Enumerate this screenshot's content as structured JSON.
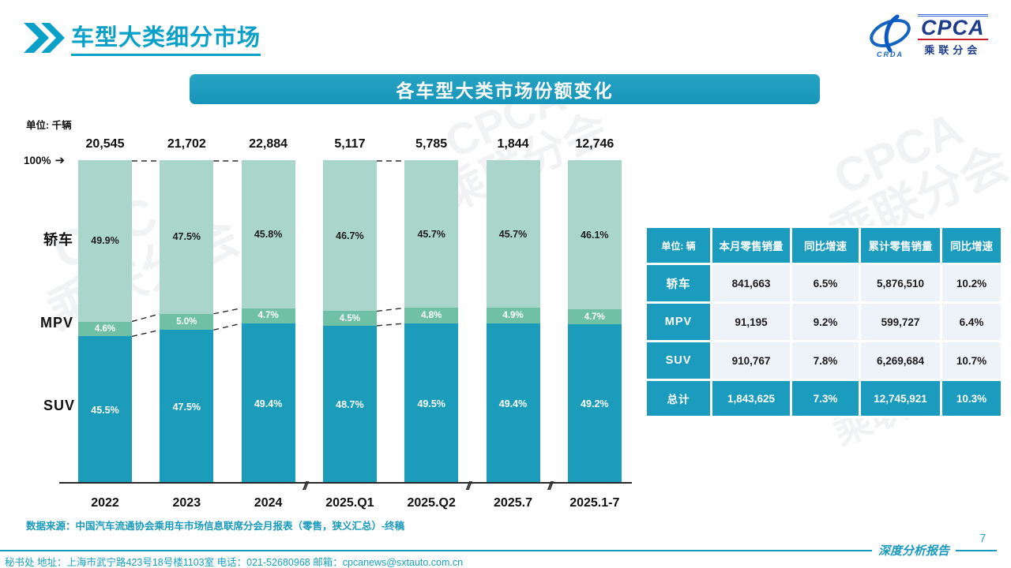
{
  "header": {
    "title": "车型大类细分市场"
  },
  "logo": {
    "name": "CPCA",
    "subtitle": "乘联分会",
    "swoosh_caption": "CRDA"
  },
  "banner": {
    "title": "各车型大类市场份额变化"
  },
  "chart_data": {
    "type": "bar",
    "stacked": true,
    "title": "各车型大类市场份额变化",
    "unit_label": "单位: 千辆",
    "y_top_label": "100%",
    "ylim": [
      0,
      100
    ],
    "categories": [
      "2022",
      "2023",
      "2024",
      "2025.Q1",
      "2025.Q2",
      "2025.7",
      "2025.1-7"
    ],
    "totals": [
      "20,545",
      "21,702",
      "22,884",
      "5,117",
      "5,785",
      "1,844",
      "12,746"
    ],
    "series": [
      {
        "name": "轿车",
        "color": "#a9d5cb",
        "values": [
          49.9,
          47.5,
          45.8,
          46.7,
          45.7,
          45.7,
          46.1
        ],
        "labels": [
          "49.9%",
          "47.5%",
          "45.8%",
          "46.7%",
          "45.7%",
          "45.7%",
          "46.1%"
        ]
      },
      {
        "name": "MPV",
        "color": "#6fc0a5",
        "values": [
          4.6,
          5.0,
          4.7,
          4.5,
          4.8,
          4.9,
          4.7
        ],
        "labels": [
          "4.6%",
          "5.0%",
          "4.7%",
          "4.5%",
          "4.8%",
          "4.9%",
          "4.7%"
        ]
      },
      {
        "name": "SUV",
        "color": "#1b9cba",
        "values": [
          45.5,
          47.5,
          49.4,
          48.7,
          49.5,
          49.4,
          49.2
        ],
        "labels": [
          "45.5%",
          "47.5%",
          "49.4%",
          "48.7%",
          "49.5%",
          "49.4%",
          "49.2%"
        ]
      }
    ],
    "connector_pairs": [
      [
        0,
        1
      ],
      [
        1,
        2
      ],
      [
        3,
        4
      ]
    ],
    "axis_breaks_after": [
      2,
      4,
      5
    ],
    "grid": false,
    "legend_position": "left"
  },
  "table": {
    "headers": [
      "单位: 辆",
      "本月零售销量",
      "同比增速",
      "累计零售销量",
      "同比增速"
    ],
    "rows": [
      {
        "label": "轿车",
        "cells": [
          "841,663",
          "6.5%",
          "5,876,510",
          "10.2%"
        ]
      },
      {
        "label": "MPV",
        "cells": [
          "91,195",
          "9.2%",
          "599,727",
          "6.4%"
        ]
      },
      {
        "label": "SUV",
        "cells": [
          "910,767",
          "7.8%",
          "6,269,684",
          "10.7%"
        ]
      }
    ],
    "total": {
      "label": "总计",
      "cells": [
        "1,843,625",
        "7.3%",
        "12,745,921",
        "10.3%"
      ]
    }
  },
  "source_note": "数据来源：中国汽车流通协会乘用车市场信息联席分会月报表（零售，狭义汇总）-终稿",
  "footer": {
    "contact": "秘书处  地址：上海市武宁路423号18号楼1103室  电话：021-52680968   邮箱：cpcanews@sxtauto.com.cn",
    "report_label": "深度分析报告",
    "page_number": "7"
  },
  "watermark": "CPCA\n乘联分会",
  "colors": {
    "teal": "#1899bc",
    "title_teal": "#0aa0c8",
    "table_cell": "#eef2f9"
  }
}
